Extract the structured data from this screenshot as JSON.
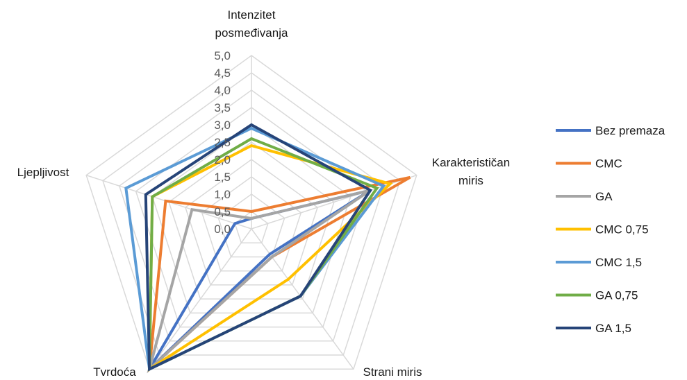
{
  "chart_data": {
    "type": "radar",
    "title": "",
    "axes": [
      "Intenzitet posmeđivanja",
      "Karakterističan miris",
      "Strani miris",
      "Tvrdoća",
      "Ljepljivost"
    ],
    "axis_label_lines": [
      [
        "Intenzitet",
        "posmeđivanja"
      ],
      [
        "Karakterističan",
        "miris"
      ],
      [
        "Strani miris"
      ],
      [
        "Tvrdoća"
      ],
      [
        "Ljepljivost"
      ]
    ],
    "rlim": [
      0,
      5
    ],
    "ticks": [
      "0,0",
      "0,5",
      "1,0",
      "1,5",
      "2,0",
      "2,5",
      "3,0",
      "3,5",
      "4,0",
      "4,5",
      "5,0"
    ],
    "tick_values": [
      0,
      0.5,
      1,
      1.5,
      2,
      2.5,
      3,
      3.5,
      4,
      4.5,
      5
    ],
    "grid": true,
    "legend_position": "right",
    "series": [
      {
        "name": "Bez premaza",
        "color": "#4472C4",
        "values": [
          0.3,
          3.6,
          0.9,
          5.0,
          0.5
        ]
      },
      {
        "name": "CMC",
        "color": "#ED7D31",
        "values": [
          0.5,
          4.8,
          1.0,
          5.0,
          2.6
        ]
      },
      {
        "name": "GA",
        "color": "#A5A5A5",
        "values": [
          0.3,
          3.6,
          1.0,
          5.0,
          1.8
        ]
      },
      {
        "name": "CMC 0,75",
        "color": "#FFC000",
        "values": [
          2.4,
          4.2,
          1.8,
          5.0,
          3.0
        ]
      },
      {
        "name": "CMC 1,5",
        "color": "#5B9BD5",
        "values": [
          2.9,
          4.0,
          2.4,
          5.0,
          3.8
        ]
      },
      {
        "name": "GA 0,75",
        "color": "#70AD47",
        "values": [
          2.6,
          3.8,
          2.4,
          5.0,
          3.0
        ]
      },
      {
        "name": "GA 1,5",
        "color": "#264478",
        "values": [
          3.0,
          3.6,
          2.4,
          5.0,
          3.2
        ]
      }
    ]
  }
}
